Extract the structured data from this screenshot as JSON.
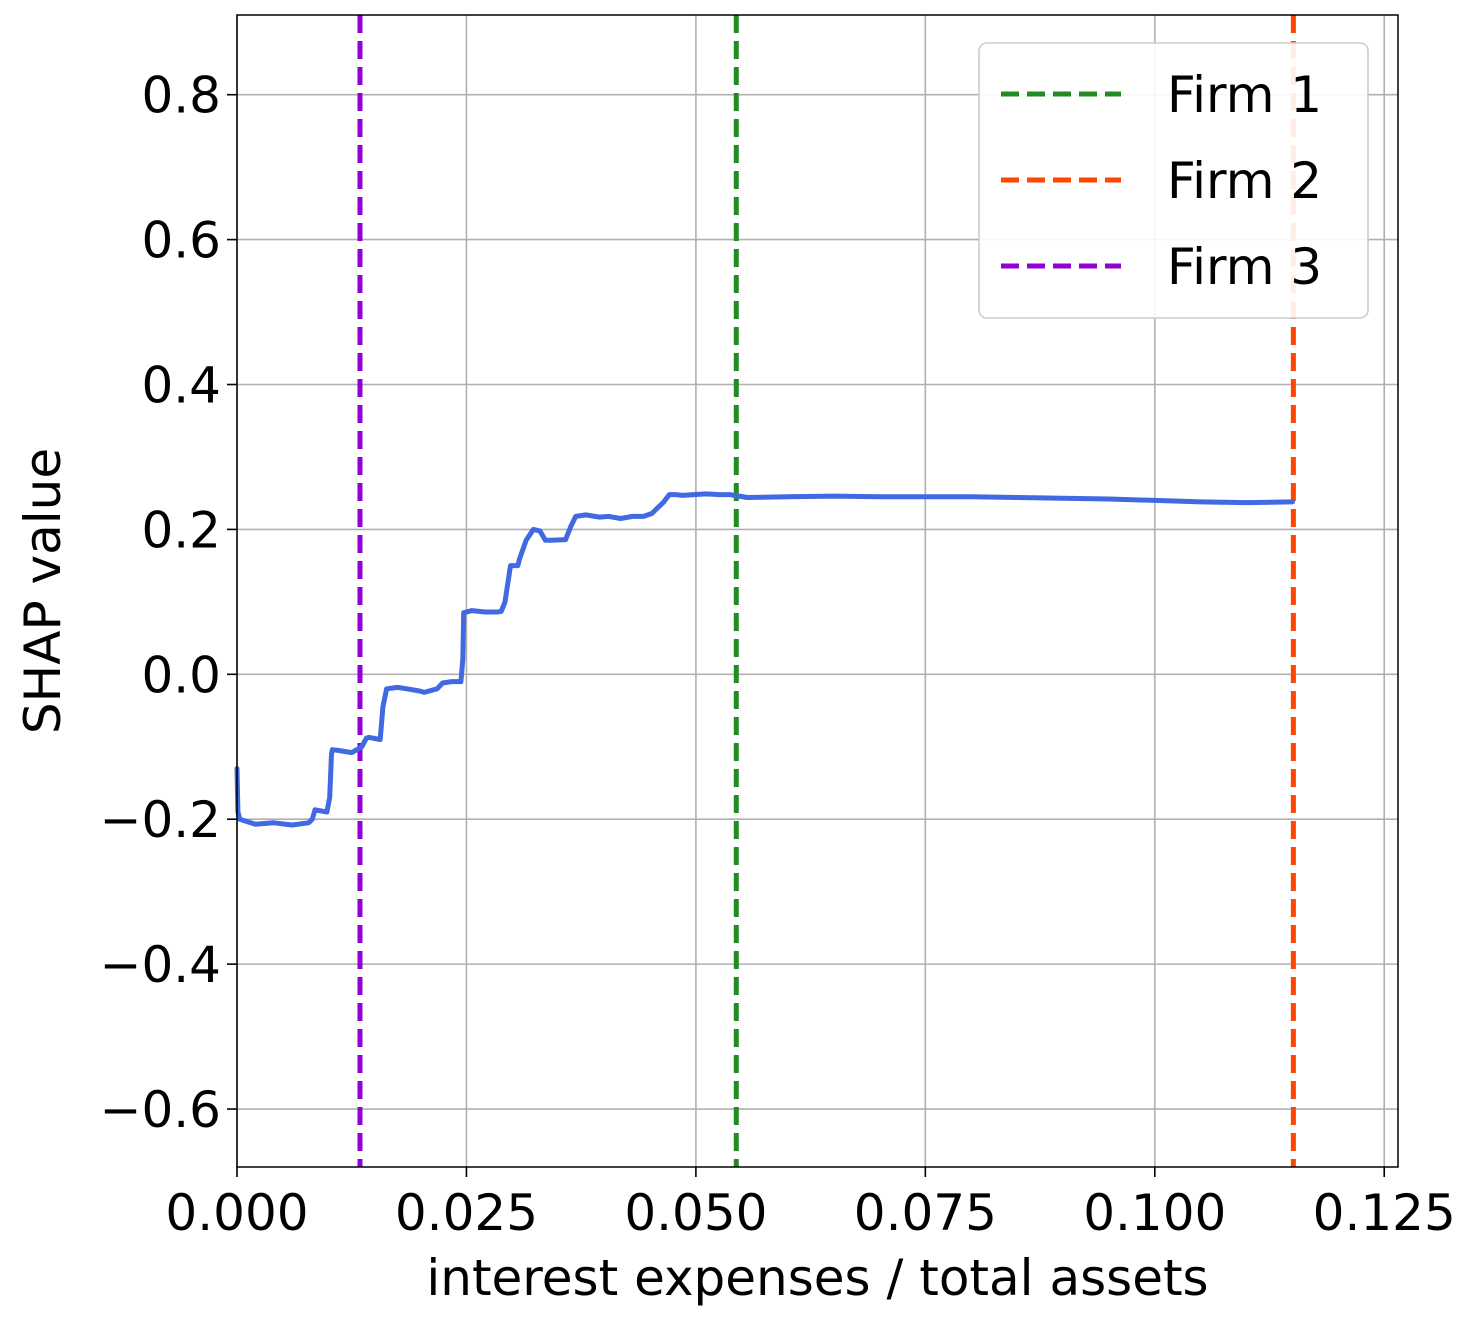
{
  "chart_data": {
    "type": "line",
    "xlabel": "interest expenses / total assets",
    "ylabel": "SHAP value",
    "xlim": [
      0.0,
      0.1265
    ],
    "ylim": [
      -0.68,
      0.91
    ],
    "grid": true,
    "legend_position": "top-right",
    "xticks": [
      {
        "value": 0.0,
        "label": "0.000"
      },
      {
        "value": 0.025,
        "label": "0.025"
      },
      {
        "value": 0.05,
        "label": "0.050"
      },
      {
        "value": 0.075,
        "label": "0.075"
      },
      {
        "value": 0.1,
        "label": "0.100"
      },
      {
        "value": 0.125,
        "label": "0.125"
      }
    ],
    "yticks": [
      {
        "value": -0.6,
        "label": "−0.6"
      },
      {
        "value": -0.4,
        "label": "−0.4"
      },
      {
        "value": -0.2,
        "label": "−0.2"
      },
      {
        "value": 0.0,
        "label": "0.0"
      },
      {
        "value": 0.2,
        "label": "0.2"
      },
      {
        "value": 0.4,
        "label": "0.4"
      },
      {
        "value": 0.6,
        "label": "0.6"
      },
      {
        "value": 0.8,
        "label": "0.8"
      }
    ],
    "series": [
      {
        "color": "#4169e1",
        "x": [
          0.0,
          0.0001,
          0.0003,
          0.002,
          0.004,
          0.006,
          0.0078,
          0.0082,
          0.0085,
          0.0098,
          0.0101,
          0.0103,
          0.0104,
          0.011,
          0.0125,
          0.0136,
          0.0141,
          0.0144,
          0.0156,
          0.0159,
          0.0163,
          0.0175,
          0.0185,
          0.0199,
          0.0204,
          0.0218,
          0.0224,
          0.0234,
          0.0244,
          0.0246,
          0.0247,
          0.0256,
          0.027,
          0.0284,
          0.0288,
          0.0292,
          0.0298,
          0.0306,
          0.0308,
          0.0315,
          0.0323,
          0.033,
          0.0336,
          0.0342,
          0.0358,
          0.0364,
          0.0369,
          0.038,
          0.0395,
          0.0405,
          0.0418,
          0.0431,
          0.0443,
          0.0452,
          0.0465,
          0.0471,
          0.0478,
          0.0485,
          0.0498,
          0.0511,
          0.0526,
          0.0537,
          0.0547,
          0.0556,
          0.06,
          0.065,
          0.07,
          0.075,
          0.08,
          0.085,
          0.09,
          0.095,
          0.1,
          0.105,
          0.11,
          0.115
        ],
        "y": [
          -0.13,
          -0.19,
          -0.2,
          -0.207,
          -0.205,
          -0.208,
          -0.205,
          -0.2,
          -0.187,
          -0.19,
          -0.17,
          -0.11,
          -0.104,
          -0.105,
          -0.108,
          -0.1,
          -0.088,
          -0.087,
          -0.09,
          -0.045,
          -0.02,
          -0.018,
          -0.02,
          -0.023,
          -0.025,
          -0.02,
          -0.012,
          -0.01,
          -0.01,
          0.02,
          0.085,
          0.088,
          0.086,
          0.086,
          0.087,
          0.1,
          0.15,
          0.15,
          0.16,
          0.185,
          0.2,
          0.198,
          0.185,
          0.185,
          0.186,
          0.205,
          0.218,
          0.22,
          0.217,
          0.218,
          0.215,
          0.218,
          0.218,
          0.222,
          0.238,
          0.248,
          0.248,
          0.247,
          0.248,
          0.249,
          0.248,
          0.248,
          0.246,
          0.244,
          0.245,
          0.246,
          0.245,
          0.245,
          0.245,
          0.244,
          0.243,
          0.242,
          0.24,
          0.238,
          0.237,
          0.238
        ]
      }
    ],
    "vlines": [
      {
        "name": "Firm 1",
        "x": 0.0544,
        "color": "#228b22"
      },
      {
        "name": "Firm 2",
        "x": 0.1151,
        "color": "#ff4500"
      },
      {
        "name": "Firm 3",
        "x": 0.0134,
        "color": "#9400d3"
      }
    ]
  }
}
